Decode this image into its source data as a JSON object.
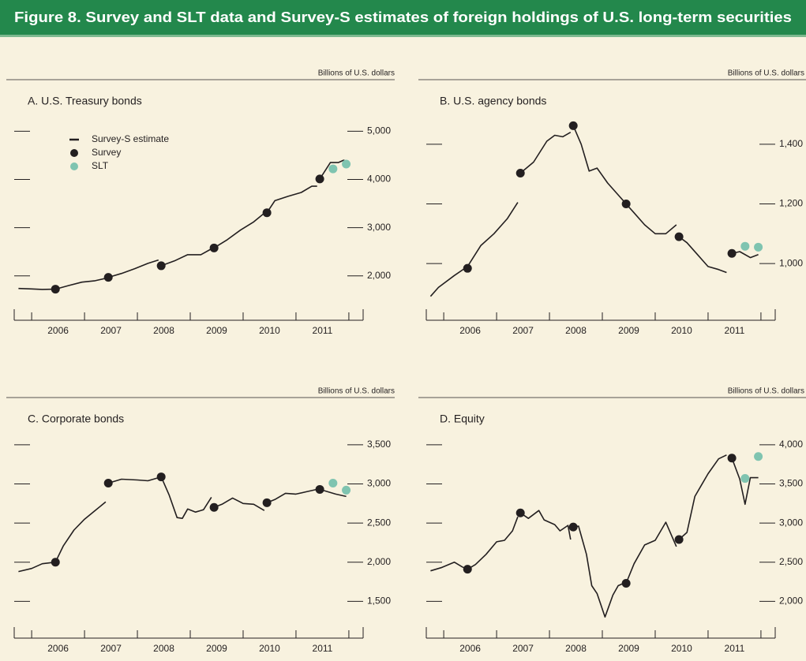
{
  "title": "Figure 8. Survey and SLT data and Survey-S estimates of foreign holdings of U.S. long-term securities",
  "chart_data": [
    {
      "type": "line",
      "title": "A. U.S. Treasury bonds",
      "units": "Billions of U.S. dollars",
      "legend": "upper left",
      "xlim": [
        2005.67,
        2012.27
      ],
      "xticks": [
        {
          "value": 2006.5,
          "label": "2006"
        },
        {
          "value": 2007.5,
          "label": "2007"
        },
        {
          "value": 2008.5,
          "label": "2008"
        },
        {
          "value": 2009.5,
          "label": "2009"
        },
        {
          "value": 2010.5,
          "label": "2010"
        },
        {
          "value": 2011.5,
          "label": "2011"
        }
      ],
      "ylim": [
        1080,
        5350
      ],
      "yticks": [
        {
          "value": 2000,
          "label": "2,000"
        },
        {
          "value": 3000,
          "label": "3,000"
        },
        {
          "value": 4000,
          "label": "4,000"
        },
        {
          "value": 5000,
          "label": "5,000"
        }
      ],
      "series": [
        {
          "name": "Survey-S estimate",
          "mode": "line",
          "color": "#231f20",
          "x": [
            2005.75,
            2006.0,
            2006.2,
            2006.45,
            2006.7,
            2006.95,
            2007.2,
            2007.4,
            null,
            2007.45,
            2007.7,
            2007.95,
            2008.2,
            2008.4,
            null,
            2008.45,
            2008.7,
            2008.95,
            2009.2,
            2009.4,
            null,
            2009.45,
            2009.7,
            2009.95,
            2010.2,
            2010.4,
            null,
            2010.45,
            2010.6,
            2010.85,
            2011.1,
            2011.3,
            2011.4,
            null,
            2011.45,
            2011.65,
            2011.8,
            2011.9,
            2011.95
          ],
          "values": [
            1740,
            1730,
            1720,
            1725,
            1800,
            1870,
            1900,
            1950,
            null,
            1970,
            2050,
            2150,
            2260,
            2330,
            null,
            2210,
            2310,
            2440,
            2440,
            2560,
            null,
            2580,
            2750,
            2950,
            3120,
            3300,
            null,
            3310,
            3560,
            3650,
            3730,
            3860,
            3860,
            null,
            4010,
            4350,
            4350,
            4400,
            4380
          ]
        },
        {
          "name": "Survey",
          "mode": "markers",
          "color": "#231f20",
          "x": [
            2006.45,
            2007.45,
            2008.45,
            2009.45,
            2010.45,
            2011.45
          ],
          "values": [
            1725,
            1970,
            2210,
            2580,
            3310,
            4010
          ]
        },
        {
          "name": "SLT",
          "mode": "markers",
          "color": "#7fc4b0",
          "x": [
            2011.7,
            2011.95
          ],
          "values": [
            4220,
            4320
          ]
        }
      ]
    },
    {
      "type": "line",
      "title": "B. U.S. agency bonds",
      "units": "Billions of U.S. dollars",
      "xlim": [
        2005.67,
        2012.27
      ],
      "xticks": [
        {
          "value": 2006.5,
          "label": "2006"
        },
        {
          "value": 2007.5,
          "label": "2007"
        },
        {
          "value": 2008.5,
          "label": "2008"
        },
        {
          "value": 2009.5,
          "label": "2009"
        },
        {
          "value": 2010.5,
          "label": "2010"
        },
        {
          "value": 2011.5,
          "label": "2011"
        }
      ],
      "ylim": [
        810,
        1500
      ],
      "yticks": [
        {
          "value": 1000,
          "label": "1,000"
        },
        {
          "value": 1200,
          "label": "1,200"
        },
        {
          "value": 1400,
          "label": "1,400"
        }
      ],
      "series": [
        {
          "mode": "line",
          "color": "#231f20",
          "x": [
            2005.75,
            2005.9,
            2006.2,
            2006.45,
            2006.7,
            2006.95,
            2007.2,
            2007.4,
            null,
            2007.45,
            2007.7,
            2007.95,
            2008.1,
            2008.25,
            2008.4,
            null,
            2008.45,
            2008.6,
            2008.75,
            2008.9,
            2009.1,
            2009.3,
            2009.4,
            null,
            2009.45,
            2009.6,
            2009.8,
            2010.0,
            2010.2,
            2010.4,
            null,
            2010.45,
            2010.6,
            2010.8,
            2011.0,
            2011.2,
            2011.35,
            null,
            2011.45,
            2011.6,
            2011.8,
            2011.95
          ],
          "values": [
            890,
            920,
            960,
            990,
            1060,
            1100,
            1150,
            1205,
            null,
            1303,
            1340,
            1410,
            1430,
            1425,
            1440,
            null,
            1462,
            1400,
            1310,
            1320,
            1270,
            1230,
            1210,
            null,
            1200,
            1170,
            1130,
            1100,
            1100,
            1130,
            null,
            1090,
            1070,
            1030,
            990,
            980,
            970,
            null,
            1034,
            1040,
            1020,
            1030
          ]
        },
        {
          "mode": "markers",
          "color": "#231f20",
          "x": [
            2006.45,
            2007.45,
            2008.45,
            2009.45,
            2010.45,
            2011.45
          ],
          "values": [
            984,
            1303,
            1462,
            1200,
            1090,
            1034
          ]
        },
        {
          "mode": "markers",
          "color": "#7fc4b0",
          "x": [
            2011.7,
            2011.95
          ],
          "values": [
            1058,
            1055
          ]
        }
      ]
    },
    {
      "type": "line",
      "title": "C. Corporate bonds",
      "units": "Billions of U.S. dollars",
      "xlim": [
        2005.67,
        2012.27
      ],
      "xticks": [
        {
          "value": 2006.5,
          "label": "2006"
        },
        {
          "value": 2007.5,
          "label": "2007"
        },
        {
          "value": 2008.5,
          "label": "2008"
        },
        {
          "value": 2009.5,
          "label": "2009"
        },
        {
          "value": 2010.5,
          "label": "2010"
        },
        {
          "value": 2011.5,
          "label": "2011"
        }
      ],
      "ylim": [
        1030,
        3660
      ],
      "yticks": [
        {
          "value": 1500,
          "label": "1,500"
        },
        {
          "value": 2000,
          "label": "2,000"
        },
        {
          "value": 2500,
          "label": "2,500"
        },
        {
          "value": 3000,
          "label": "3,000"
        },
        {
          "value": 3500,
          "label": "3,500"
        }
      ],
      "series": [
        {
          "mode": "line",
          "color": "#231f20",
          "x": [
            2005.75,
            2006.0,
            2006.2,
            2006.45,
            2006.6,
            2006.8,
            2007.0,
            2007.2,
            2007.4,
            null,
            2007.45,
            2007.7,
            2008.0,
            2008.2,
            2008.4,
            null,
            2008.45,
            2008.6,
            2008.75,
            2008.85,
            2008.95,
            2009.1,
            2009.25,
            2009.4,
            null,
            2009.45,
            2009.6,
            2009.8,
            2010.0,
            2010.2,
            2010.4,
            null,
            2010.45,
            2010.6,
            2010.8,
            2011.0,
            2011.2,
            2011.4,
            null,
            2011.45,
            2011.6,
            2011.75,
            2011.95
          ],
          "values": [
            1880,
            1920,
            1980,
            2000,
            2210,
            2410,
            2550,
            2660,
            2770,
            null,
            3010,
            3060,
            3050,
            3040,
            3080,
            null,
            3090,
            2860,
            2570,
            2560,
            2680,
            2640,
            2670,
            2830,
            null,
            2700,
            2740,
            2820,
            2750,
            2740,
            2660,
            null,
            2760,
            2800,
            2880,
            2870,
            2900,
            2930,
            null,
            2930,
            2900,
            2870,
            2840
          ]
        },
        {
          "mode": "markers",
          "color": "#231f20",
          "x": [
            2006.45,
            2007.45,
            2008.45,
            2009.45,
            2010.45,
            2011.45
          ],
          "values": [
            2000,
            3010,
            3090,
            2700,
            2760,
            2930
          ]
        },
        {
          "mode": "markers",
          "color": "#7fc4b0",
          "x": [
            2011.7,
            2011.95
          ],
          "values": [
            3010,
            2920
          ]
        }
      ]
    },
    {
      "type": "line",
      "title": "D. Equity",
      "units": "Billions of U.S. dollars",
      "xlim": [
        2005.67,
        2012.27
      ],
      "xticks": [
        {
          "value": 2006.5,
          "label": "2006"
        },
        {
          "value": 2007.5,
          "label": "2007"
        },
        {
          "value": 2008.5,
          "label": "2008"
        },
        {
          "value": 2009.5,
          "label": "2009"
        },
        {
          "value": 2010.5,
          "label": "2010"
        },
        {
          "value": 2011.5,
          "label": "2011"
        }
      ],
      "ylim": [
        1530,
        4160
      ],
      "yticks": [
        {
          "value": 2000,
          "label": "2,000"
        },
        {
          "value": 2500,
          "label": "2,500"
        },
        {
          "value": 3000,
          "label": "3,000"
        },
        {
          "value": 3500,
          "label": "3,500"
        },
        {
          "value": 4000,
          "label": "4,000"
        }
      ],
      "series": [
        {
          "mode": "line",
          "color": "#231f20",
          "x": [
            2005.75,
            2005.95,
            2006.2,
            2006.35,
            2006.45,
            2006.6,
            2006.8,
            2007.0,
            2007.15,
            2007.3,
            2007.4,
            null,
            2007.45,
            2007.6,
            2007.8,
            2007.9,
            2008.1,
            2008.2,
            2008.35,
            2008.4,
            null,
            2008.45,
            2008.55,
            2008.7,
            2008.8,
            2008.9,
            2009.05,
            2009.2,
            2009.3,
            2009.4,
            null,
            2009.45,
            2009.6,
            2009.8,
            2010.0,
            2010.2,
            2010.4,
            null,
            2010.45,
            2010.6,
            2010.75,
            2011.0,
            2011.2,
            2011.35,
            null,
            2011.45,
            2011.6,
            2011.7,
            2011.8,
            2011.95
          ],
          "values": [
            2390,
            2430,
            2500,
            2440,
            2410,
            2470,
            2600,
            2760,
            2780,
            2900,
            3080,
            null,
            3130,
            3060,
            3160,
            3040,
            2980,
            2900,
            2970,
            2790,
            null,
            2950,
            2960,
            2600,
            2200,
            2100,
            1800,
            2080,
            2200,
            2230,
            null,
            2230,
            2480,
            2720,
            2780,
            3010,
            2700,
            null,
            2790,
            2880,
            3340,
            3630,
            3820,
            3870,
            null,
            3830,
            3560,
            3240,
            3580,
            3580
          ]
        },
        {
          "mode": "markers",
          "color": "#231f20",
          "x": [
            2006.45,
            2007.45,
            2008.45,
            2009.45,
            2010.45,
            2011.45
          ],
          "values": [
            2410,
            3130,
            2950,
            2230,
            2790,
            3830
          ]
        },
        {
          "mode": "markers",
          "color": "#7fc4b0",
          "x": [
            2011.7,
            2011.95
          ],
          "values": [
            3570,
            3850
          ]
        }
      ]
    }
  ]
}
